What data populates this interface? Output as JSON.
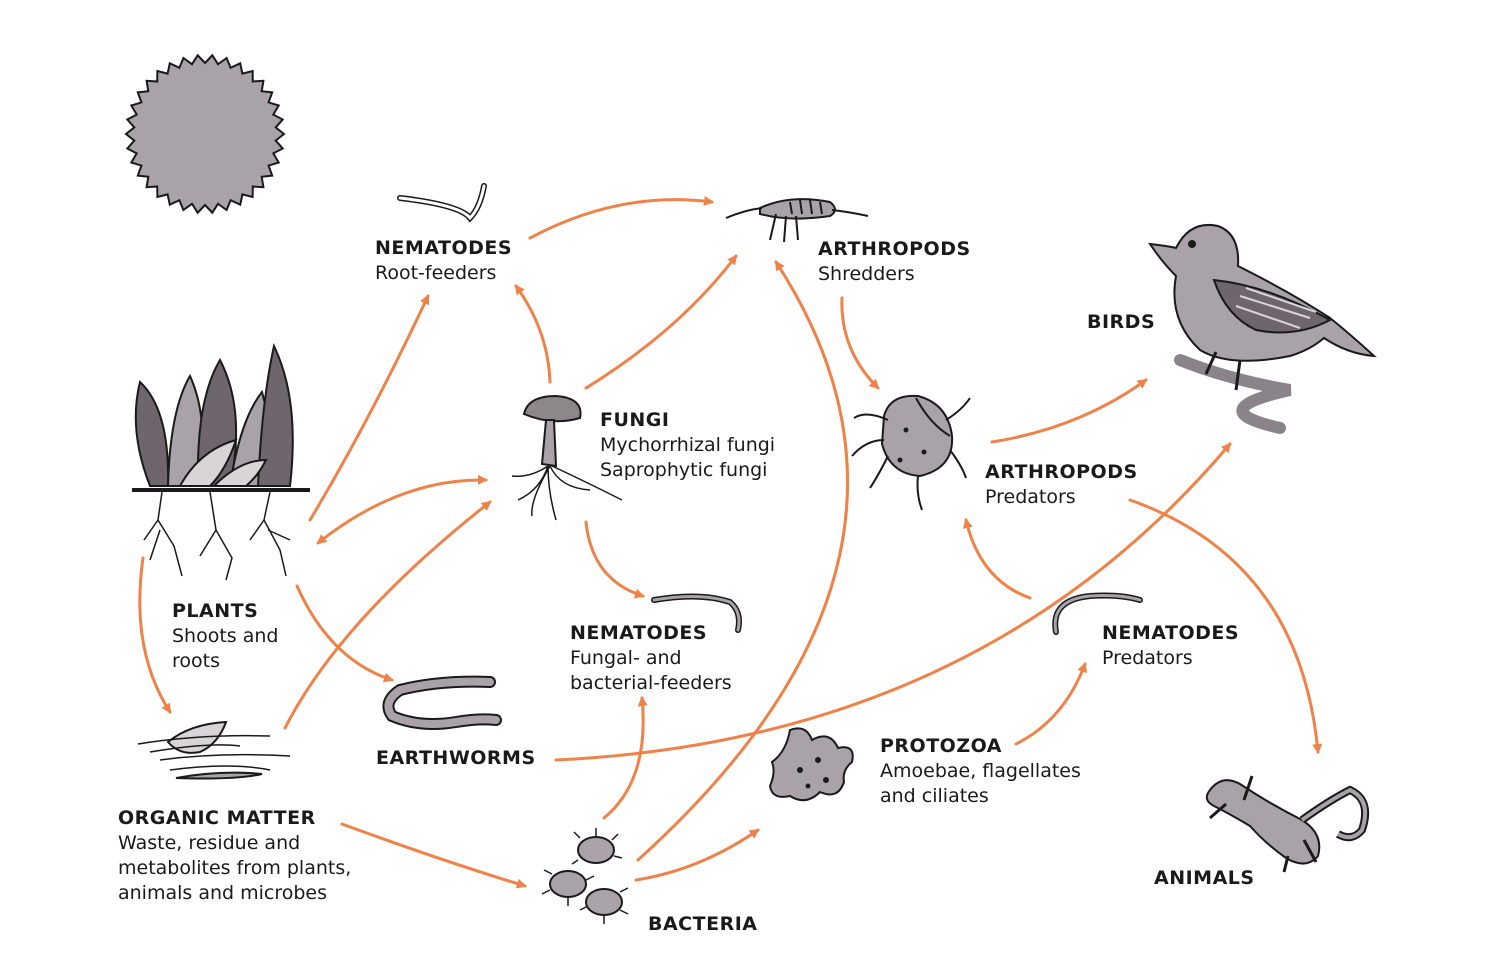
{
  "colors": {
    "arrow": "#ee8248",
    "organism_fill": "#a9a2a8",
    "organism_dark": "#6f666d",
    "outline": "#1a1a1a",
    "text": "#1a1a1a"
  },
  "nodes": {
    "nematodes_root": {
      "title": "NEMATODES",
      "sub": [
        "Root-feeders"
      ],
      "icon": "nematode-icon"
    },
    "arthropods_shredders": {
      "title": "ARTHROPODS",
      "sub": [
        "Shredders"
      ],
      "icon": "springtail-icon"
    },
    "birds": {
      "title": "BIRDS",
      "sub": [],
      "icon": "bird-icon"
    },
    "fungi": {
      "title": "FUNGI",
      "sub": [
        "Mychorrhizal fungi",
        "Saprophytic fungi"
      ],
      "icon": "mushroom-icon"
    },
    "arthropods_predators": {
      "title": "ARTHROPODS",
      "sub": [
        "Predators"
      ],
      "icon": "mite-icon"
    },
    "plants": {
      "title": "PLANTS",
      "sub": [
        "Shoots and",
        "roots"
      ],
      "icon": "plants-icon"
    },
    "nematodes_fungal": {
      "title": "NEMATODES",
      "sub": [
        "Fungal- and",
        "bacterial-feeders"
      ],
      "icon": "nematode-icon"
    },
    "nematodes_predators": {
      "title": "NEMATODES",
      "sub": [
        "Predators"
      ],
      "icon": "nematode-icon"
    },
    "earthworms": {
      "title": "EARTHWORMS",
      "sub": [],
      "icon": "earthworm-icon"
    },
    "protozoa": {
      "title": "PROTOZOA",
      "sub": [
        "Amoebae, flagellates",
        "and ciliates"
      ],
      "icon": "amoeba-icon"
    },
    "organic_matter": {
      "title": "ORGANIC MATTER",
      "sub": [
        "Waste, residue and",
        "metabolites from plants,",
        "animals and microbes"
      ],
      "icon": "leaf-litter-icon"
    },
    "bacteria": {
      "title": "BACTERIA",
      "sub": [],
      "icon": "bacteria-icon"
    },
    "animals": {
      "title": "ANIMALS",
      "sub": [],
      "icon": "salamander-icon"
    },
    "sun": {
      "icon": "sun-icon"
    }
  },
  "edges": [
    {
      "from": "plants",
      "to": "nematodes_root"
    },
    {
      "from": "plants",
      "to": "fungi",
      "bidirectional": true
    },
    {
      "from": "plants",
      "to": "organic_matter"
    },
    {
      "from": "plants",
      "to": "earthworms"
    },
    {
      "from": "nematodes_root",
      "to": "arthropods_shredders"
    },
    {
      "from": "fungi",
      "to": "nematodes_root"
    },
    {
      "from": "fungi",
      "to": "arthropods_shredders"
    },
    {
      "from": "fungi",
      "to": "nematodes_fungal"
    },
    {
      "from": "organic_matter",
      "to": "fungi"
    },
    {
      "from": "organic_matter",
      "to": "bacteria"
    },
    {
      "from": "bacteria",
      "to": "nematodes_fungal"
    },
    {
      "from": "bacteria",
      "to": "arthropods_shredders"
    },
    {
      "from": "bacteria",
      "to": "protozoa"
    },
    {
      "from": "protozoa",
      "to": "nematodes_predators"
    },
    {
      "from": "nematodes_predators",
      "to": "arthropods_predators"
    },
    {
      "from": "arthropods_shredders",
      "to": "arthropods_predators"
    },
    {
      "from": "arthropods_predators",
      "to": "birds"
    },
    {
      "from": "arthropods_predators",
      "to": "animals"
    },
    {
      "from": "earthworms",
      "to": "birds"
    }
  ]
}
